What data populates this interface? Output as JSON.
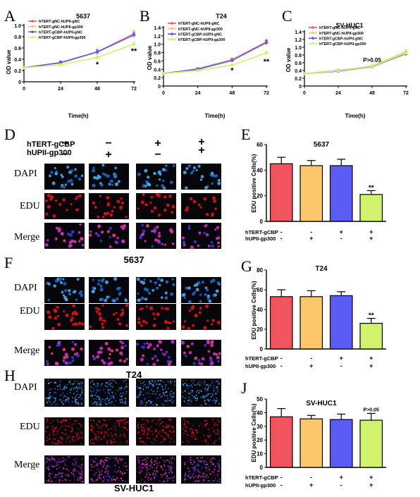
{
  "colors": {
    "red": "#f2545f",
    "orange": "#fdc66b",
    "blue": "#5b5bf5",
    "green": "#cff36d",
    "dapi": "#1a66c8",
    "edu": "#e01212",
    "merge": "#b418b4"
  },
  "line_panels": [
    {
      "letter": "A",
      "title": "5637",
      "ylabel": "OD value",
      "xlabel": "Time(h)",
      "legend": [
        "hTERT-gNC-hUPII-gNC",
        "hTERT-gNC-hUPII-gp300",
        "hTERT-gCBP-hUPII-gNC",
        "hTERT-gCBP-hUPII-gp300"
      ],
      "yticks": [
        "0",
        "0.2",
        "0.4",
        "0.6",
        "0.8",
        "1.0"
      ],
      "xticks": [
        "0",
        "24",
        "48",
        "72"
      ],
      "annotations": [
        {
          "text": "*",
          "x": 48,
          "y": 0.36
        },
        {
          "text": "**",
          "x": 72,
          "y": 0.6
        }
      ]
    },
    {
      "letter": "B",
      "title": "T24",
      "ylabel": "OD value",
      "xlabel": "Time(h)",
      "legend": [
        "hTERT-gNC-hUPII-gNC",
        "hTERT-gNC-hUPII-gp300",
        "hTERT-gCBP-hUPII-gNC",
        "hTERT-gCBP-hUPII-gp300"
      ],
      "yticks": [
        "0",
        "0.2",
        "0.4",
        "0.6",
        "0.8",
        "1.0",
        "1.2",
        "1.4"
      ],
      "xticks": [
        "0",
        "24",
        "48",
        "72"
      ],
      "annotations": [
        {
          "text": "*",
          "x": 48,
          "y": 0.45
        },
        {
          "text": "**",
          "x": 72,
          "y": 0.66
        }
      ]
    },
    {
      "letter": "C",
      "title": "SV-HUC1",
      "ylabel": "OD value",
      "xlabel": "Time(h)",
      "legend": [
        "hTERT-gNC-hUPII-gNC",
        "hTERT-gNC-hUPII-gp300",
        "hTERT-gCBP-hUPII-gNC",
        "hTERT-gCBP-hUPII-gp300"
      ],
      "yticks": [
        "0",
        "0.2",
        "0.4",
        "0.6",
        "0.8",
        "1.0",
        "1.2",
        "1.4"
      ],
      "xticks": [
        "0",
        "24",
        "48",
        "72"
      ],
      "annotations": [
        {
          "text": "P>0.05",
          "x": 48,
          "y": 0.62
        }
      ]
    }
  ],
  "chart_data": [
    {
      "type": "line",
      "title": "5637",
      "xlabel": "Time(h)",
      "ylabel": "OD value",
      "x": [
        0,
        24,
        48,
        72
      ],
      "xlim": [
        0,
        72
      ],
      "ylim": [
        0,
        1.0
      ],
      "series": [
        {
          "name": "hTERT-gNC-hUPII-gNC",
          "values": [
            0.25,
            0.34,
            0.53,
            0.85
          ],
          "err": [
            0.02,
            0.03,
            0.04,
            0.05
          ]
        },
        {
          "name": "hTERT-gNC-hUPII-gp300",
          "values": [
            0.25,
            0.33,
            0.52,
            0.84
          ],
          "err": [
            0.02,
            0.03,
            0.04,
            0.05
          ]
        },
        {
          "name": "hTERT-gCBP-hUPII-gNC",
          "values": [
            0.25,
            0.34,
            0.53,
            0.83
          ],
          "err": [
            0.02,
            0.03,
            0.04,
            0.04
          ]
        },
        {
          "name": "hTERT-gCBP-hUPII-gp300",
          "values": [
            0.25,
            0.3,
            0.43,
            0.67
          ],
          "err": [
            0.02,
            0.02,
            0.03,
            0.04
          ]
        }
      ]
    },
    {
      "type": "line",
      "title": "T24",
      "xlabel": "Time(h)",
      "ylabel": "OD value",
      "x": [
        0,
        24,
        48,
        72
      ],
      "xlim": [
        0,
        72
      ],
      "ylim": [
        0,
        1.4
      ],
      "series": [
        {
          "name": "hTERT-gNC-hUPII-gNC",
          "values": [
            0.3,
            0.41,
            0.63,
            1.05
          ],
          "err": [
            0.02,
            0.03,
            0.04,
            0.06
          ]
        },
        {
          "name": "hTERT-gNC-hUPII-gp300",
          "values": [
            0.3,
            0.4,
            0.62,
            1.03
          ],
          "err": [
            0.02,
            0.03,
            0.04,
            0.06
          ]
        },
        {
          "name": "hTERT-gCBP-hUPII-gNC",
          "values": [
            0.3,
            0.4,
            0.61,
            1.04
          ],
          "err": [
            0.02,
            0.03,
            0.04,
            0.05
          ]
        },
        {
          "name": "hTERT-gCBP-hUPII-gp300",
          "values": [
            0.3,
            0.37,
            0.5,
            0.79
          ],
          "err": [
            0.02,
            0.02,
            0.03,
            0.04
          ]
        }
      ]
    },
    {
      "type": "line",
      "title": "SV-HUC1",
      "xlabel": "Time(h)",
      "ylabel": "OD value",
      "x": [
        0,
        24,
        48,
        72
      ],
      "xlim": [
        0,
        72
      ],
      "ylim": [
        0,
        1.4
      ],
      "series": [
        {
          "name": "hTERT-gNC-hUPII-gNC",
          "values": [
            0.32,
            0.4,
            0.51,
            0.84
          ],
          "err": [
            0.02,
            0.02,
            0.03,
            0.05
          ]
        },
        {
          "name": "hTERT-gNC-hUPII-gp300",
          "values": [
            0.32,
            0.39,
            0.52,
            0.88
          ],
          "err": [
            0.02,
            0.02,
            0.03,
            0.06
          ]
        },
        {
          "name": "hTERT-gCBP-hUPII-gNC",
          "values": [
            0.32,
            0.38,
            0.5,
            0.83
          ],
          "err": [
            0.02,
            0.02,
            0.03,
            0.05
          ]
        },
        {
          "name": "hTERT-gCBP-hUPII-gp300",
          "values": [
            0.32,
            0.39,
            0.51,
            0.85
          ],
          "err": [
            0.02,
            0.02,
            0.03,
            0.05
          ]
        }
      ]
    },
    {
      "type": "bar",
      "title": "5637",
      "ylabel": "EDU positive Cells(%)",
      "ylim": [
        0,
        60
      ],
      "yticks": [
        "0",
        "20",
        "40",
        "60"
      ],
      "categories": [
        "-/-",
        "-/+",
        "+/-",
        "+/+"
      ],
      "values": [
        45,
        43.5,
        43.5,
        21
      ],
      "err": [
        5,
        4,
        5,
        3
      ],
      "row_labels": [
        "hTERT-gCBP",
        "hUPII-gp300"
      ],
      "row1": [
        "-",
        "-",
        "+",
        "+"
      ],
      "row2": [
        "-",
        "+",
        "-",
        "+"
      ],
      "annotation": {
        "text": "**",
        "index": 3
      }
    },
    {
      "type": "bar",
      "title": "T24",
      "ylabel": "EDU positive Cells(%)",
      "ylim": [
        0,
        80
      ],
      "yticks": [
        "0",
        "20",
        "40",
        "60",
        "80"
      ],
      "categories": [
        "-/-",
        "-/+",
        "+/-",
        "+/+"
      ],
      "values": [
        53,
        53,
        54,
        26
      ],
      "err": [
        7,
        6,
        4,
        5
      ],
      "row_labels": [
        "hTERT-gCBP",
        "hUPII-gp300"
      ],
      "row1": [
        "-",
        "-",
        "+",
        "+"
      ],
      "row2": [
        "-",
        "+",
        "-",
        "+"
      ],
      "annotation": {
        "text": "**",
        "index": 3
      }
    },
    {
      "type": "bar",
      "title": "SV-HUC1",
      "ylabel": "EDU positive Cells(%)",
      "ylim": [
        0,
        50
      ],
      "yticks": [
        "0",
        "10",
        "20",
        "30",
        "40",
        "50"
      ],
      "categories": [
        "-/-",
        "-/+",
        "+/-",
        "+/+"
      ],
      "values": [
        37,
        35.5,
        35,
        34.5
      ],
      "err": [
        6,
        2.5,
        4,
        5
      ],
      "row_labels": [
        "hTERT-gCBP",
        "hUPII-gp300"
      ],
      "row1": [
        "-",
        "-",
        "+",
        "+"
      ],
      "row2": [
        "-",
        "+",
        "-",
        "+"
      ],
      "annotation": {
        "text": "P>0.05",
        "index": 3
      }
    }
  ],
  "micro_panels": [
    {
      "letter": "D",
      "cell_line": "5637",
      "header_labels": [
        "hTERT-gCBP",
        "hUPII-gp300"
      ],
      "header_row1": [
        "−",
        "−",
        "+",
        "+"
      ],
      "header_row2": [
        "−",
        "+",
        "−",
        "+"
      ],
      "rows": [
        "DAPI",
        "EDU",
        "Merge"
      ]
    },
    {
      "letter": "F",
      "cell_line": "T24",
      "rows": [
        "DAPI",
        "EDU",
        "Merge"
      ]
    },
    {
      "letter": "H",
      "cell_line": "SV-HUC1",
      "rows": [
        "DAPI",
        "EDU",
        "Merge"
      ]
    }
  ],
  "bar_panels": [
    {
      "letter": "E"
    },
    {
      "letter": "G"
    },
    {
      "letter": "J"
    }
  ]
}
